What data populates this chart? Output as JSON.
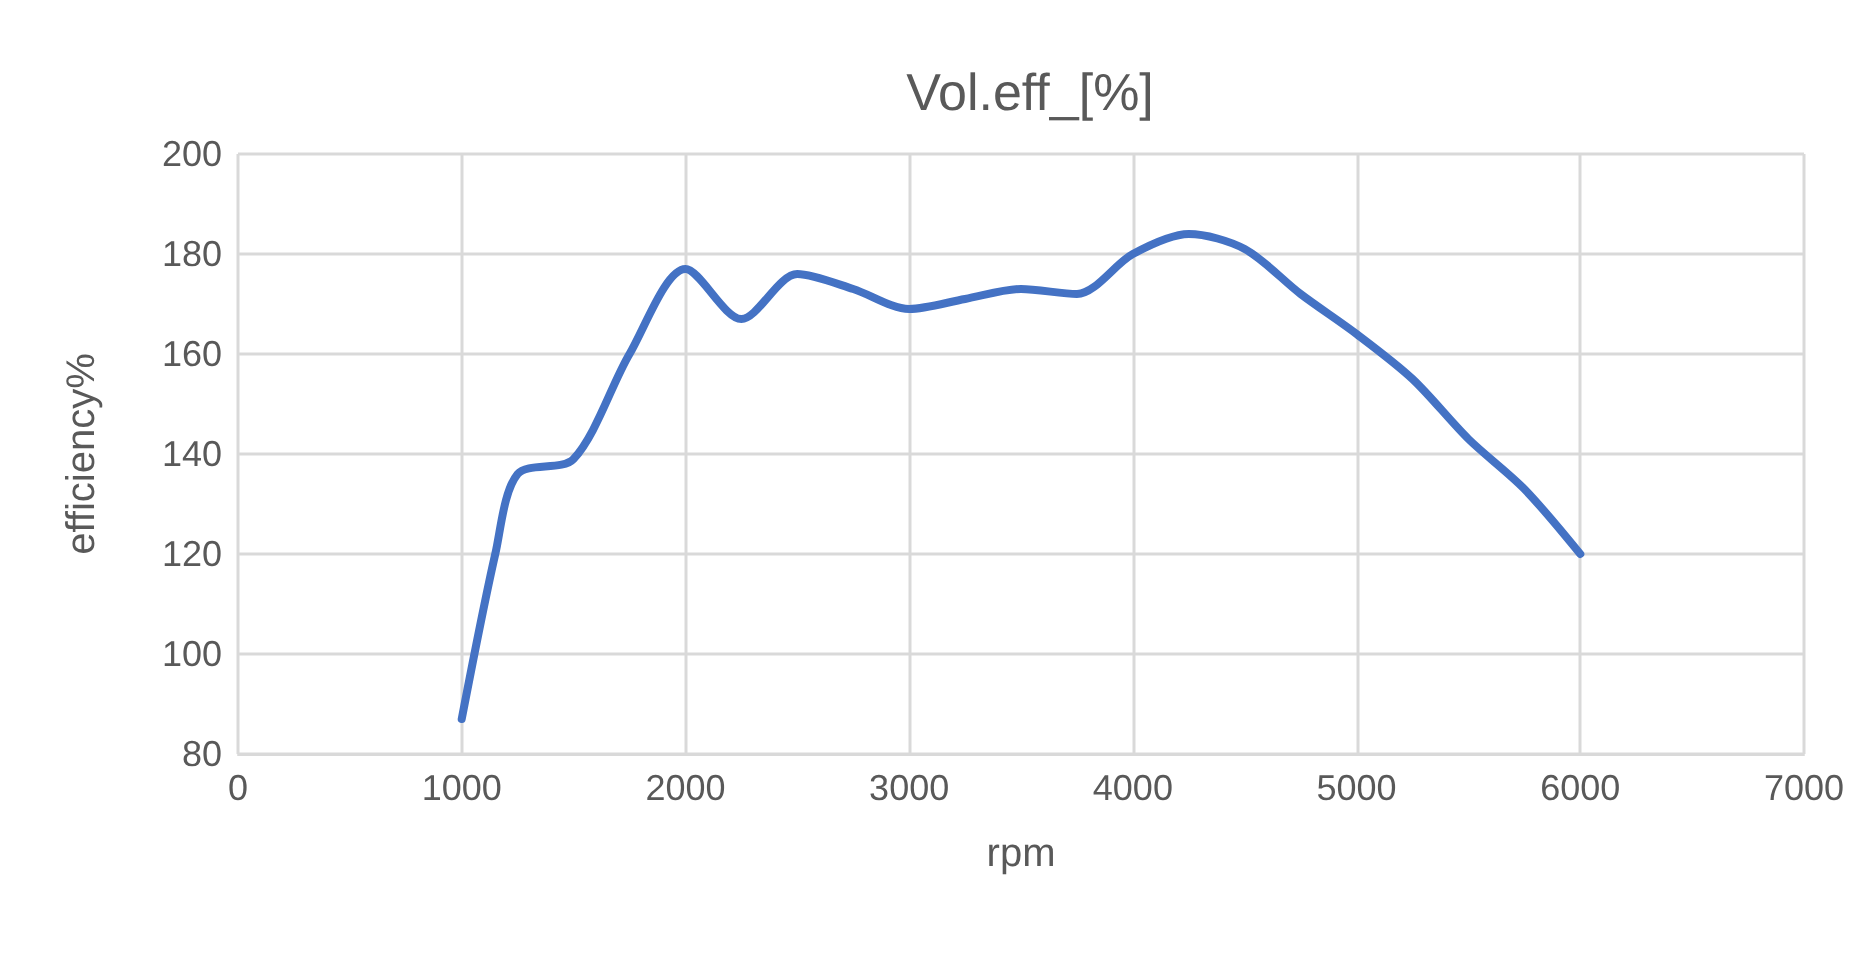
{
  "chart_data": {
    "type": "line",
    "title": "Vol.eff_[%]",
    "xlabel": "rpm",
    "ylabel": "efficiency%",
    "x": [
      1000,
      1150,
      1250,
      1500,
      1750,
      2000,
      2250,
      2500,
      2750,
      3000,
      3250,
      3500,
      3750,
      4000,
      4250,
      4500,
      4750,
      5000,
      5250,
      5500,
      5750,
      6000
    ],
    "series": [
      {
        "color": "#4472c4",
        "values": [
          87,
          120,
          136,
          139,
          160,
          177,
          167,
          176,
          173,
          169,
          171,
          173,
          172,
          180,
          184,
          181,
          172,
          164,
          155,
          143,
          133,
          120
        ]
      }
    ],
    "xlim": [
      0,
      7000
    ],
    "xticks": [
      0,
      1000,
      2000,
      3000,
      4000,
      5000,
      6000,
      7000
    ],
    "ylim": [
      80,
      200
    ],
    "yticks": [
      80,
      100,
      120,
      140,
      160,
      180,
      200
    ],
    "grid": true,
    "marker": "none",
    "line_style": "solid"
  }
}
